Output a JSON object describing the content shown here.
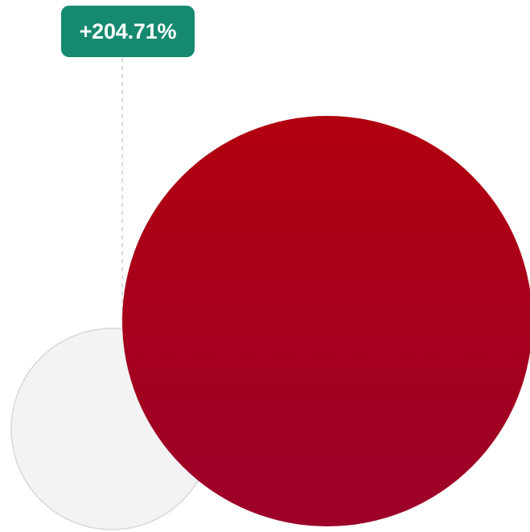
{
  "chart_data": {
    "type": "bubble-comparison",
    "change_label": "+204.71%",
    "relative_size": 3.0471,
    "colors": {
      "badge": "#168a6f",
      "current": "#b1000f",
      "current_dark": "#9c0029",
      "previous_fill": "#f3f3f3",
      "previous_stroke": "#d8d8d8",
      "guide": "#cfcfcf"
    }
  }
}
